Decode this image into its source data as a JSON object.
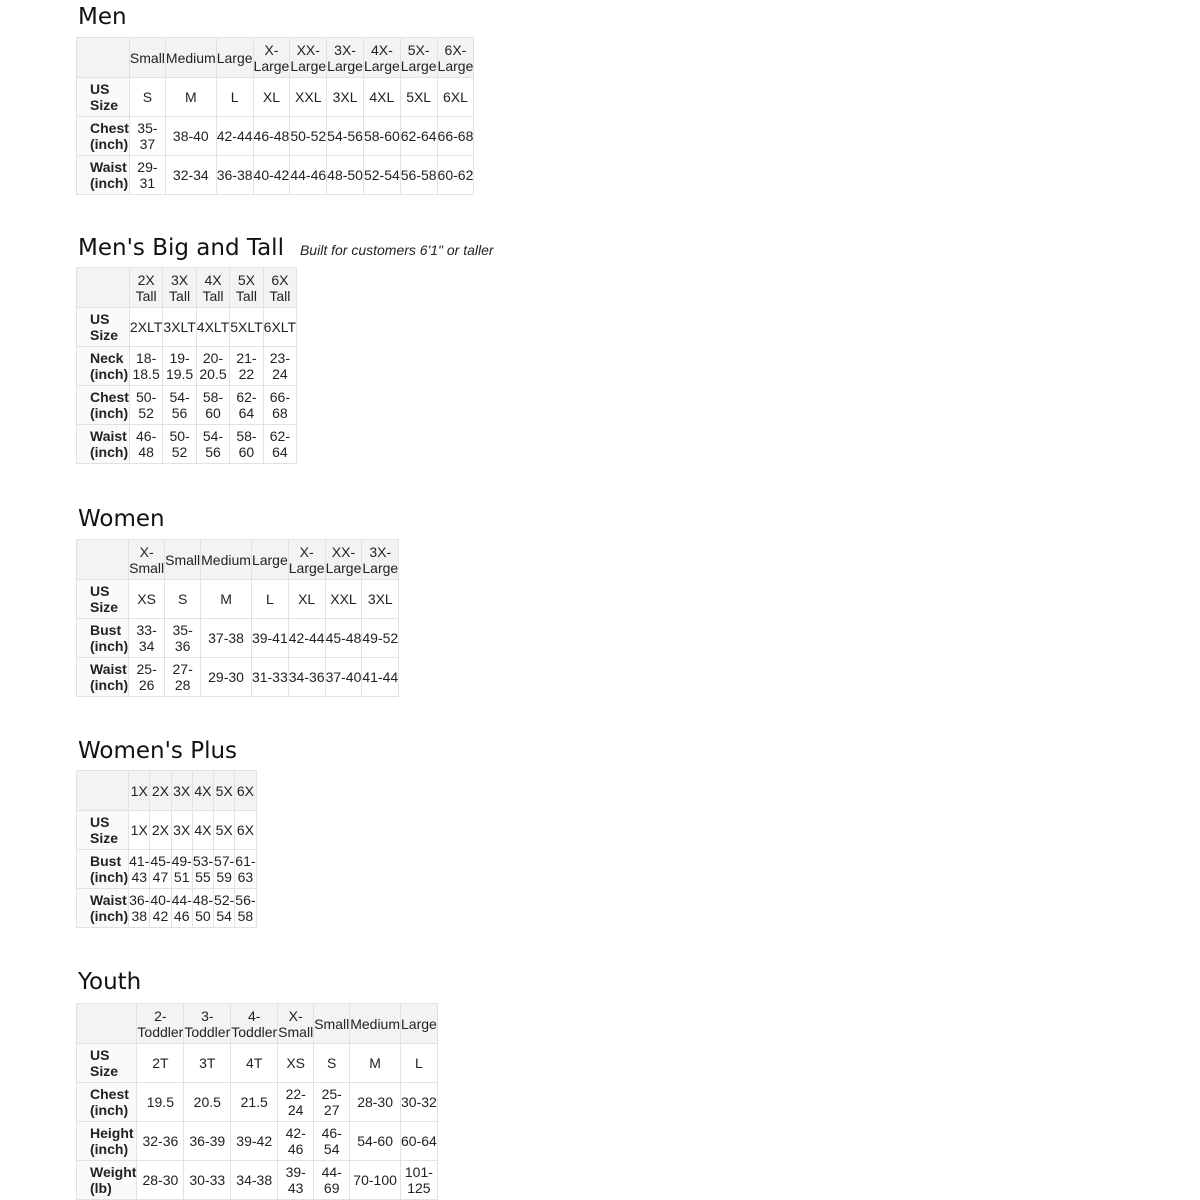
{
  "sections": [
    {
      "id": "men",
      "title": "Men",
      "subtitle": "",
      "columns": [
        "Small",
        "Medium",
        "Large",
        "X-Large",
        "XX-Large",
        "3X-Large",
        "4X-Large",
        "5X-Large",
        "6X-Large"
      ],
      "rows": [
        {
          "label": "US Size",
          "values": [
            "S",
            "M",
            "L",
            "XL",
            "XXL",
            "3XL",
            "4XL",
            "5XL",
            "6XL"
          ]
        },
        {
          "label": "Chest (inch)",
          "values": [
            "35-37",
            "38-40",
            "42-44",
            "46-48",
            "50-52",
            "54-56",
            "58-60",
            "62-64",
            "66-68"
          ]
        },
        {
          "label": "Waist (inch)",
          "values": [
            "29-31",
            "32-34",
            "36-38",
            "40-42",
            "44-46",
            "48-50",
            "52-54",
            "56-58",
            "60-62"
          ]
        }
      ]
    },
    {
      "id": "mens-big-and-tall",
      "title": "Men's Big and Tall",
      "subtitle": "Built for customers 6'1\" or taller",
      "columns": [
        "2X Tall",
        "3X Tall",
        "4X Tall",
        "5X Tall",
        "6X Tall"
      ],
      "rows": [
        {
          "label": "US Size",
          "values": [
            "2XLT",
            "3XLT",
            "4XLT",
            "5XLT",
            "6XLT"
          ]
        },
        {
          "label": "Neck (inch)",
          "values": [
            "18-18.5",
            "19-19.5",
            "20-20.5",
            "21-22",
            "23-24"
          ]
        },
        {
          "label": "Chest (inch)",
          "values": [
            "50-52",
            "54-56",
            "58-60",
            "62-64",
            "66-68"
          ]
        },
        {
          "label": "Waist (inch)",
          "values": [
            "46-48",
            "50-52",
            "54-56",
            "58-60",
            "62-64"
          ]
        }
      ]
    },
    {
      "id": "women",
      "title": "Women",
      "subtitle": "",
      "columns": [
        "X-Small",
        "Small",
        "Medium",
        "Large",
        "X-Large",
        "XX-Large",
        "3X-Large"
      ],
      "rows": [
        {
          "label": "US Size",
          "values": [
            "XS",
            "S",
            "M",
            "L",
            "XL",
            "XXL",
            "3XL"
          ]
        },
        {
          "label": "Bust (inch)",
          "values": [
            "33-34",
            "35-36",
            "37-38",
            "39-41",
            "42-44",
            "45-48",
            "49-52"
          ]
        },
        {
          "label": "Waist (inch)",
          "values": [
            "25-26",
            "27-28",
            "29-30",
            "31-33",
            "34-36",
            "37-40",
            "41-44"
          ]
        }
      ]
    },
    {
      "id": "womens-plus",
      "title": "Women's  Plus",
      "subtitle": "",
      "columns": [
        "1X",
        "2X",
        "3X",
        "4X",
        "5X",
        "6X"
      ],
      "rows": [
        {
          "label": "US Size",
          "values": [
            "1X",
            "2X",
            "3X",
            "4X",
            "5X",
            "6X"
          ]
        },
        {
          "label": "Bust (inch)",
          "values": [
            "41-43",
            "45-47",
            "49-51",
            "53-55",
            "57-59",
            "61-63"
          ]
        },
        {
          "label": "Waist (inch)",
          "values": [
            "36-38",
            "40-42",
            "44-46",
            "48-50",
            "52-54",
            "56-58"
          ]
        }
      ]
    },
    {
      "id": "youth",
      "title": "Youth",
      "subtitle": "",
      "columns": [
        "2-Toddler",
        "3-Toddler",
        "4-Toddler",
        "X-Small",
        "Small",
        "Medium",
        "Large"
      ],
      "rows": [
        {
          "label": "US Size",
          "values": [
            "2T",
            "3T",
            "4T",
            "XS",
            "S",
            "M",
            "L"
          ]
        },
        {
          "label": "Chest (inch)",
          "values": [
            "19.5",
            "20.5",
            "21.5",
            "22-24",
            "25-27",
            "28-30",
            "30-32"
          ]
        },
        {
          "label": "Height (inch)",
          "values": [
            "32-36",
            "36-39",
            "39-42",
            "42-46",
            "46-54",
            "54-60",
            "60-64"
          ]
        },
        {
          "label": "Weight (lb)",
          "values": [
            "28-30",
            "30-33",
            "34-38",
            "39-43",
            "44-69",
            "70-100",
            "101-125"
          ]
        }
      ]
    }
  ]
}
